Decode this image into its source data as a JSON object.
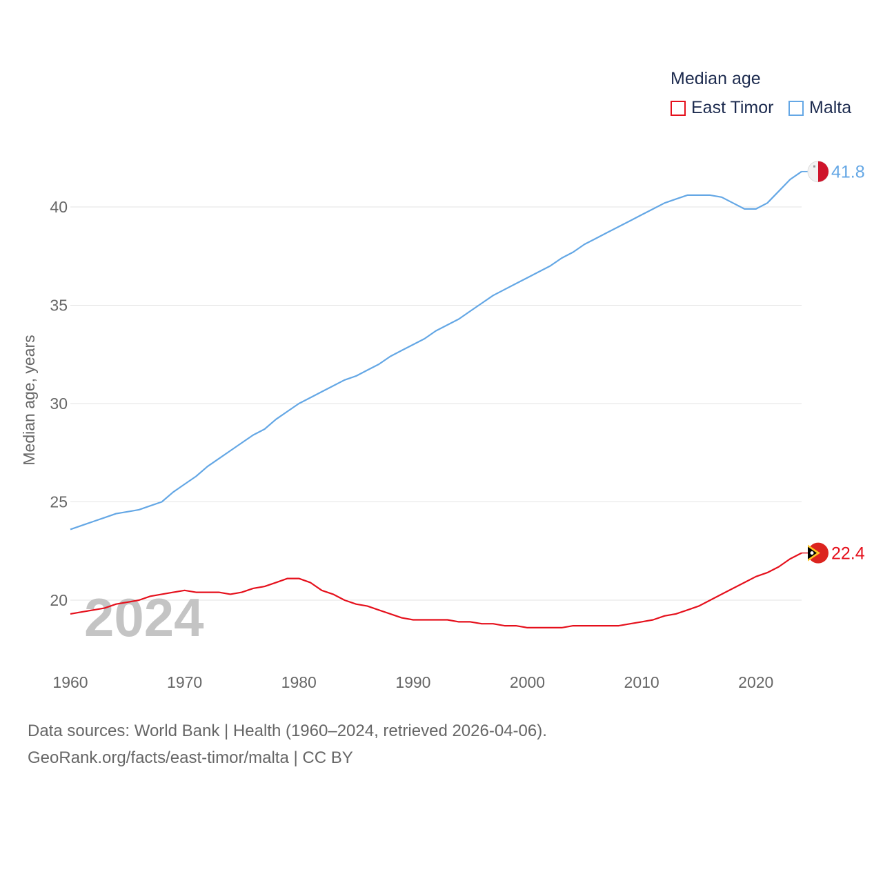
{
  "chart_data": {
    "type": "line",
    "legend_title": "Median age",
    "ylabel": "Median age, years",
    "xlim": [
      1960,
      2024
    ],
    "ylim": [
      17,
      43
    ],
    "yticks": [
      20,
      25,
      30,
      35,
      40
    ],
    "xticks": [
      1960,
      1970,
      1980,
      1990,
      2000,
      2010,
      2020
    ],
    "year_label": "2024",
    "colors": {
      "East Timor": "#e5101c",
      "Malta": "#64a7e5"
    },
    "x": [
      1960,
      1961,
      1962,
      1963,
      1964,
      1965,
      1966,
      1967,
      1968,
      1969,
      1970,
      1971,
      1972,
      1973,
      1974,
      1975,
      1976,
      1977,
      1978,
      1979,
      1980,
      1981,
      1982,
      1983,
      1984,
      1985,
      1986,
      1987,
      1988,
      1989,
      1990,
      1991,
      1992,
      1993,
      1994,
      1995,
      1996,
      1997,
      1998,
      1999,
      2000,
      2001,
      2002,
      2003,
      2004,
      2005,
      2006,
      2007,
      2008,
      2009,
      2010,
      2011,
      2012,
      2013,
      2014,
      2015,
      2016,
      2017,
      2018,
      2019,
      2020,
      2021,
      2022,
      2023,
      2024
    ],
    "series": [
      {
        "name": "East Timor",
        "end_label": "22.4",
        "values": [
          19.3,
          19.4,
          19.5,
          19.6,
          19.8,
          19.9,
          20.0,
          20.2,
          20.3,
          20.4,
          20.5,
          20.4,
          20.4,
          20.4,
          20.3,
          20.4,
          20.6,
          20.7,
          20.9,
          21.1,
          21.1,
          20.9,
          20.5,
          20.3,
          20.0,
          19.8,
          19.7,
          19.5,
          19.3,
          19.1,
          19.0,
          19.0,
          19.0,
          19.0,
          18.9,
          18.9,
          18.8,
          18.8,
          18.7,
          18.7,
          18.6,
          18.6,
          18.6,
          18.6,
          18.7,
          18.7,
          18.7,
          18.7,
          18.7,
          18.8,
          18.9,
          19.0,
          19.2,
          19.3,
          19.5,
          19.7,
          20.0,
          20.3,
          20.6,
          20.9,
          21.2,
          21.4,
          21.7,
          22.1,
          22.4
        ]
      },
      {
        "name": "Malta",
        "end_label": "41.8",
        "values": [
          23.6,
          23.8,
          24.0,
          24.2,
          24.4,
          24.5,
          24.6,
          24.8,
          25.0,
          25.5,
          25.9,
          26.3,
          26.8,
          27.2,
          27.6,
          28.0,
          28.4,
          28.7,
          29.2,
          29.6,
          30.0,
          30.3,
          30.6,
          30.9,
          31.2,
          31.4,
          31.7,
          32.0,
          32.4,
          32.7,
          33.0,
          33.3,
          33.7,
          34.0,
          34.3,
          34.7,
          35.1,
          35.5,
          35.8,
          36.1,
          36.4,
          36.7,
          37.0,
          37.4,
          37.7,
          38.1,
          38.4,
          38.7,
          39.0,
          39.3,
          39.6,
          39.9,
          40.2,
          40.4,
          40.6,
          40.6,
          40.6,
          40.5,
          40.2,
          39.9,
          39.9,
          40.2,
          40.8,
          41.4,
          41.8
        ]
      }
    ]
  },
  "footer": {
    "line1": "Data sources: World Bank | Health (1960–2024, retrieved 2026-04-06).",
    "line2": "GeoRank.org/facts/east-timor/malta | CC BY"
  }
}
